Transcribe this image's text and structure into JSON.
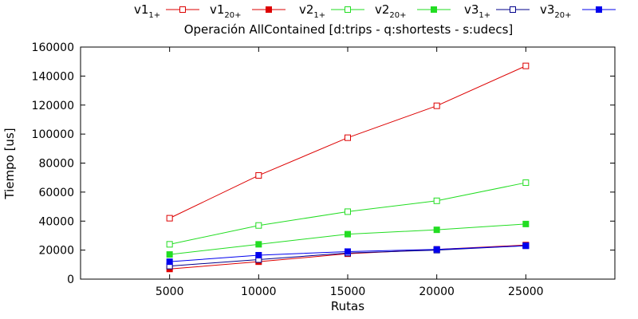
{
  "chart_data": {
    "type": "line",
    "title": "Operación AllContained [d:trips - q:shortests - s:udecs]",
    "xlabel": "Rutas",
    "ylabel": "Tiempo [us]",
    "xlim": [
      0,
      6
    ],
    "ylim": [
      0,
      160000
    ],
    "x": [
      5000,
      10000,
      15000,
      20000,
      25000
    ],
    "yticks": [
      0,
      20000,
      40000,
      60000,
      80000,
      100000,
      120000,
      140000,
      160000
    ],
    "grid": false,
    "legend_position": "top",
    "series": [
      {
        "name_base": "v1",
        "name_sub": "1+",
        "color": "#dd0000",
        "marker": "open-square",
        "values": [
          42000,
          71500,
          97500,
          119500,
          147000
        ]
      },
      {
        "name_base": "v1",
        "name_sub": "20+",
        "color": "#dd0000",
        "marker": "filled-square",
        "values": [
          7000,
          12000,
          17500,
          20500,
          23500
        ]
      },
      {
        "name_base": "v2",
        "name_sub": "1+",
        "color": "#22dd22",
        "marker": "open-square",
        "values": [
          24000,
          37000,
          46500,
          54000,
          66500
        ]
      },
      {
        "name_base": "v2",
        "name_sub": "20+",
        "color": "#22dd22",
        "marker": "filled-square",
        "values": [
          17000,
          24000,
          31000,
          34000,
          38000
        ]
      },
      {
        "name_base": "v3",
        "name_sub": "1+",
        "color": "#00008b",
        "marker": "open-square",
        "values": [
          9000,
          13500,
          18000,
          20000,
          23000
        ]
      },
      {
        "name_base": "v3",
        "name_sub": "20+",
        "color": "#0000ee",
        "marker": "filled-square",
        "values": [
          12000,
          16500,
          19000,
          20500,
          23000
        ]
      }
    ]
  }
}
